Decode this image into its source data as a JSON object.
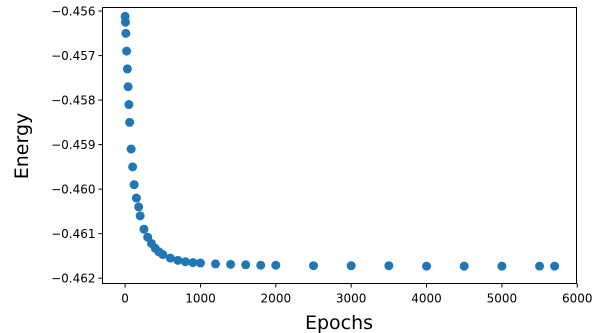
{
  "chart_data": {
    "type": "scatter",
    "title": "",
    "xlabel": "Epochs",
    "ylabel": "Energy",
    "xlim": [
      -300,
      5990
    ],
    "ylim": [
      -0.46212,
      -0.45592
    ],
    "xticks": [
      0,
      1000,
      2000,
      3000,
      4000,
      5000,
      6000
    ],
    "xtick_labels": [
      "0",
      "1000",
      "2000",
      "3000",
      "4000",
      "5000",
      "6000"
    ],
    "yticks": [
      -0.462,
      -0.461,
      -0.46,
      -0.459,
      -0.458,
      -0.457,
      -0.456
    ],
    "ytick_labels": [
      "−0.462",
      "−0.461",
      "−0.460",
      "−0.459",
      "−0.458",
      "−0.457",
      "−0.456"
    ],
    "grid": false,
    "marker_color": "#1f77b4",
    "series": [
      {
        "x": [
          0,
          5,
          10,
          20,
          30,
          40,
          50,
          60,
          80,
          100,
          120,
          150,
          180,
          200,
          250,
          300,
          350,
          400,
          450,
          500,
          600,
          700,
          800,
          900,
          1000,
          1200,
          1400,
          1600,
          1800,
          2000,
          2500,
          3000,
          3500,
          4000,
          4500,
          5000,
          5500,
          5700
        ],
        "y": [
          -0.45612,
          -0.45625,
          -0.4565,
          -0.4569,
          -0.4573,
          -0.4577,
          -0.4581,
          -0.4585,
          -0.4591,
          -0.4595,
          -0.4599,
          -0.4602,
          -0.4604,
          -0.4606,
          -0.4609,
          -0.46108,
          -0.46122,
          -0.46133,
          -0.46141,
          -0.46147,
          -0.46155,
          -0.4616,
          -0.46163,
          -0.46165,
          -0.46166,
          -0.46168,
          -0.46169,
          -0.4617,
          -0.46171,
          -0.46171,
          -0.46172,
          -0.46172,
          -0.46172,
          -0.46173,
          -0.46173,
          -0.46173,
          -0.46173,
          -0.46173
        ]
      }
    ]
  }
}
